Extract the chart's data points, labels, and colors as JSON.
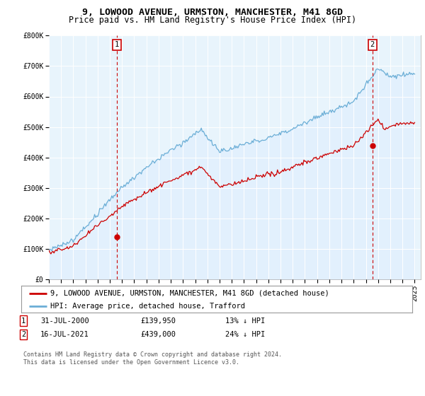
{
  "title": "9, LOWOOD AVENUE, URMSTON, MANCHESTER, M41 8GD",
  "subtitle": "Price paid vs. HM Land Registry's House Price Index (HPI)",
  "ylim": [
    0,
    800000
  ],
  "yticks": [
    0,
    100000,
    200000,
    300000,
    400000,
    500000,
    600000,
    700000,
    800000
  ],
  "ytick_labels": [
    "£0",
    "£100K",
    "£200K",
    "£300K",
    "£400K",
    "£500K",
    "£600K",
    "£700K",
    "£800K"
  ],
  "xlim_start": 1995.3,
  "xlim_end": 2025.5,
  "xticks": [
    1995,
    1996,
    1997,
    1998,
    1999,
    2000,
    2001,
    2002,
    2003,
    2004,
    2005,
    2006,
    2007,
    2008,
    2009,
    2010,
    2011,
    2012,
    2013,
    2014,
    2015,
    2016,
    2017,
    2018,
    2019,
    2020,
    2021,
    2022,
    2023,
    2024,
    2025
  ],
  "hpi_color": "#6baed6",
  "hpi_fill_color": "#ddeeff",
  "price_color": "#cc0000",
  "sale1_x": 2000.58,
  "sale1_y": 139950,
  "sale2_x": 2021.54,
  "sale2_y": 439000,
  "vline_color": "#cc0000",
  "marker_color": "#cc0000",
  "legend_house_label": "9, LOWOOD AVENUE, URMSTON, MANCHESTER, M41 8GD (detached house)",
  "legend_hpi_label": "HPI: Average price, detached house, Trafford",
  "footnote": "Contains HM Land Registry data © Crown copyright and database right 2024.\nThis data is licensed under the Open Government Licence v3.0.",
  "bg_color": "#ffffff",
  "plot_bg_color": "#e8f4fc",
  "grid_color": "#ffffff",
  "title_fontsize": 9.5,
  "subtitle_fontsize": 8.5,
  "tick_fontsize": 7,
  "legend_fontsize": 7.5
}
